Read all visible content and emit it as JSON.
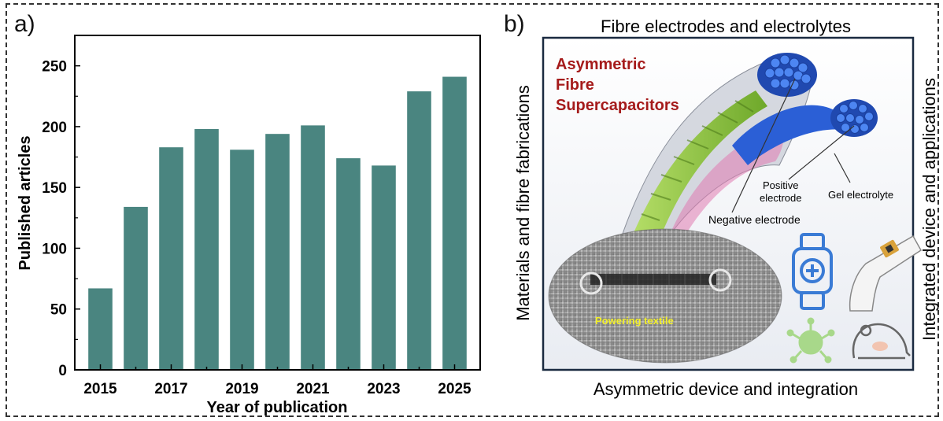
{
  "panel_a": {
    "label": "a)"
  },
  "panel_b": {
    "label": "b)",
    "top_caption": "Fibre electrodes and electrolytes",
    "bottom_caption": "Asymmetric device and integration",
    "left_caption": "Materials and fibre fabrications",
    "right_caption": "Integrated device and applications",
    "title_lines": [
      "Asymmetric",
      "Fibre",
      "Supercapacitors"
    ],
    "labels": {
      "positive_line1": "Positive",
      "positive_line2": "electrode",
      "gel": "Gel  electrolyte",
      "negative": "Negative  electrode",
      "powering": "Powering  textile"
    },
    "colors": {
      "title": "#a51b1b",
      "fibre_blue": "#2b5fd6",
      "fibre_green": "#8ec63f",
      "sheath_pink": "#e07ab0",
      "icon_blue": "#3a7bd5",
      "icon_green": "#a8d88a",
      "powering_text": "#f2ef2a"
    },
    "icons": [
      "smartwatch-icon",
      "wrist-patch-icon",
      "microbe-icon",
      "mouse-icon"
    ]
  },
  "chart_data": {
    "type": "bar",
    "categories": [
      "2015",
      "2016",
      "2017",
      "2018",
      "2019",
      "2020",
      "2021",
      "2022",
      "2023",
      "2024",
      "2025"
    ],
    "values": [
      67,
      134,
      183,
      198,
      181,
      194,
      201,
      174,
      168,
      229,
      241
    ],
    "tick_labels": [
      "2015",
      "2017",
      "2019",
      "2021",
      "2023",
      "2025"
    ],
    "y_ticks": [
      0,
      50,
      100,
      150,
      200,
      250
    ],
    "xlabel": "Year of publication",
    "ylabel": "Published articles",
    "ylim": [
      0,
      275
    ],
    "bar_color": "#4a8580",
    "grid": false
  }
}
